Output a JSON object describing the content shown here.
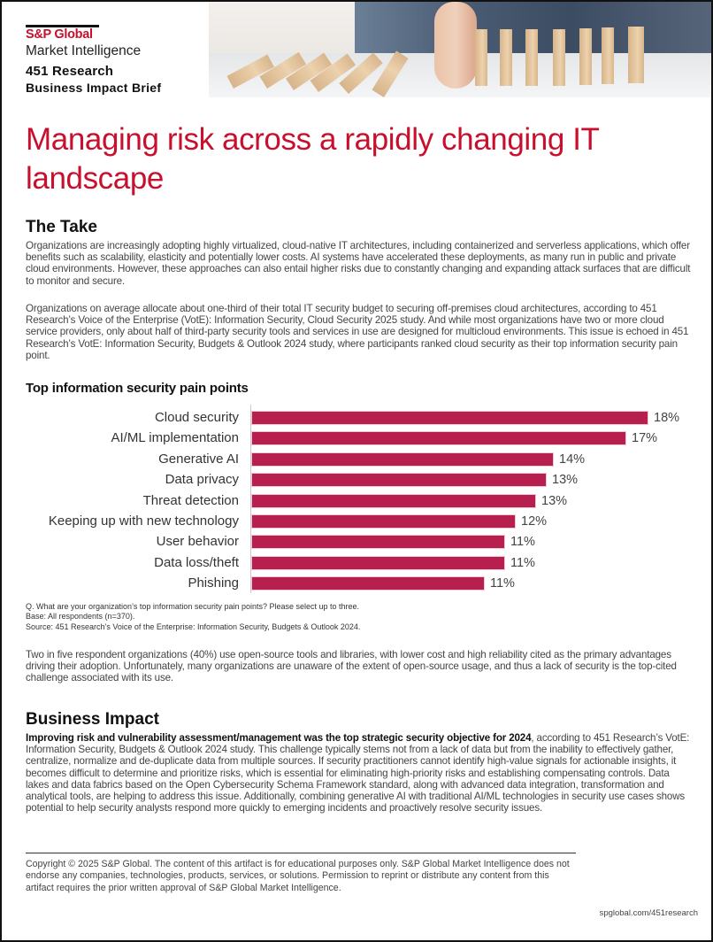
{
  "header": {
    "brand": "S&P Global",
    "brand_sub": "Market Intelligence",
    "research": "451 Research",
    "doc_type": "Business Impact Brief",
    "hero_image": "dominoes-falling-stopped-by-hand",
    "brand_color": "#c8102e"
  },
  "title": "Managing risk across a rapidly changing IT landscape",
  "the_take": {
    "heading": "The Take",
    "paragraphs": [
      "Organizations are increasingly adopting highly virtualized, cloud-native IT architectures, including containerized and serverless applications, which offer benefits such as scalability, elasticity and potentially lower costs. AI systems have accelerated these deployments, as many run in public and private cloud environments. However, these approaches can also entail higher risks due to constantly changing and expanding attack surfaces that are difficult to monitor and secure.",
      "Organizations on average allocate about one-third of their total IT security budget to securing off-premises cloud architectures, according to 451 Research’s Voice of the Enterprise (VotE): Information Security, Cloud Security 2025 study. And while most organizations have two or more cloud service providers, only about half of third-party security tools and services in use are designed for multicloud environments. This issue is echoed in 451 Research’s VotE: Information Security, Budgets & Outlook 2024 study, where participants ranked cloud security as their top information security pain point."
    ]
  },
  "chart_data": {
    "type": "bar",
    "orientation": "horizontal",
    "title": "Top information security pain points",
    "categories": [
      "Cloud security",
      "AI/ML implementation",
      "Generative AI",
      "Data privacy",
      "Threat detection",
      "Keeping up with new technology",
      "User behavior",
      "Data loss/theft",
      "Phishing"
    ],
    "values": [
      18,
      17,
      14,
      13,
      13,
      12,
      11,
      11,
      11
    ],
    "value_labels": [
      "18%",
      "17%",
      "14%",
      "13%",
      "13%",
      "12%",
      "11%",
      "11%",
      "11%"
    ],
    "precise_values": [
      18.0,
      17.0,
      13.7,
      13.4,
      12.9,
      12.0,
      11.5,
      11.5,
      10.6
    ],
    "unit": "%",
    "xlim": [
      0,
      18
    ],
    "bar_color": "#b71f4e",
    "grid": false,
    "legend": "none",
    "xlabel": "",
    "ylabel": ""
  },
  "chart_notes": {
    "question": "Q. What are your organization’s top information security pain points? Please select up to three.",
    "base": "Base: All respondents (n=370).",
    "source": "Source: 451 Research’s Voice of the Enterprise: Information Security, Budgets & Outlook 2024."
  },
  "after_chart": "Two in five respondent organizations (40%) use open-source tools and libraries, with lower cost and high reliability cited as the primary advantages driving their adoption. Unfortunately, many organizations are unaware of the extent of open-source usage, and thus a lack of security is the top-cited challenge associated with its use.",
  "business_impact": {
    "heading": "Business Impact",
    "lead_bold": "Improving risk and vulnerability assessment/management was the top strategic security objective for 2024",
    "body": ", according to 451 Research’s VotE: Information Security, Budgets & Outlook 2024 study. This challenge typically stems not from a lack of data but from the inability to effectively gather, centralize, normalize and de-duplicate data from multiple sources. If security practitioners cannot identify high-value signals for actionable insights, it becomes difficult to determine and prioritize risks, which is essential for eliminating high-priority risks and establishing compensating controls. Data lakes and data fabrics based on the Open Cybersecurity Schema Framework standard, along with advanced data integration, transformation and analytical tools, are helping to address this issue. Additionally, combining generative AI with traditional AI/ML technologies in security use cases shows potential to help security analysts respond more quickly to emerging incidents and proactively resolve security issues."
  },
  "footer": {
    "copyright": "Copyright © 2025 S&P Global. The content of this artifact is for educational purposes only. S&P Global Market Intelligence does not endorse any companies, technologies, products, services, or solutions. Permission to reprint or distribute any content from this artifact requires the prior written approval of S&P Global Market Intelligence.",
    "url": "spglobal.com/451research"
  }
}
